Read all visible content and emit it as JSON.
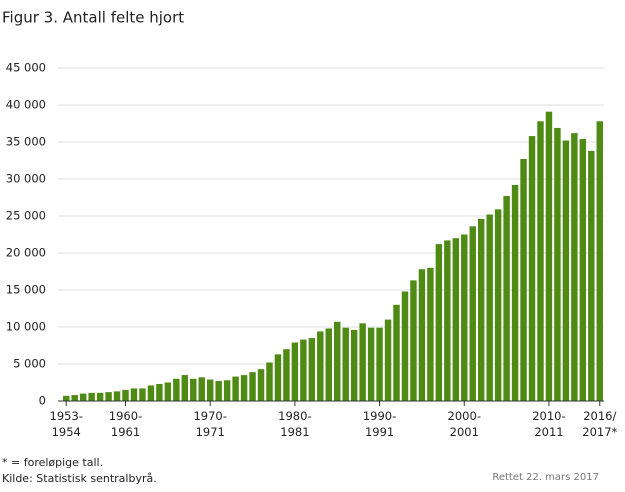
{
  "chart_data": {
    "type": "bar",
    "title": "Figur 3. Antall felte hjort",
    "categories": [
      "1953-\n1954",
      null,
      null,
      null,
      null,
      null,
      null,
      "1960-\n1961",
      null,
      null,
      null,
      null,
      null,
      null,
      null,
      null,
      null,
      "1970-\n1971",
      null,
      null,
      null,
      null,
      null,
      null,
      null,
      null,
      null,
      "1980-\n1981",
      null,
      null,
      null,
      null,
      null,
      null,
      null,
      null,
      null,
      "1990-\n1991",
      null,
      null,
      null,
      null,
      null,
      null,
      null,
      null,
      null,
      "2000-\n2001",
      null,
      null,
      null,
      null,
      null,
      null,
      null,
      null,
      null,
      "2010-\n2011",
      null,
      null,
      null,
      null,
      null,
      "2016/\n2017*"
    ],
    "values": [
      700,
      800,
      1000,
      1100,
      1100,
      1200,
      1300,
      1500,
      1700,
      1700,
      2100,
      2300,
      2500,
      3000,
      3500,
      3000,
      3200,
      2900,
      2700,
      2800,
      3300,
      3500,
      3900,
      4300,
      5200,
      6300,
      7000,
      7900,
      8300,
      8500,
      9400,
      9800,
      10700,
      9900,
      9600,
      10500,
      9900,
      9900,
      11000,
      13000,
      14800,
      16300,
      17800,
      18000,
      21200,
      21700,
      22000,
      22500,
      23600,
      24600,
      25200,
      25900,
      27700,
      29200,
      32700,
      35800,
      37800,
      39100,
      36900,
      35200,
      36200,
      35400,
      33800,
      37800
    ],
    "color": "#4e8a14",
    "ylim": [
      0,
      45000
    ],
    "yticks": [
      0,
      {
        "value": 5000,
        "label": "5 000"
      },
      {
        "value": 10000,
        "label": "10 000"
      },
      {
        "value": 15000,
        "label": "15 000"
      },
      {
        "value": 20000,
        "label": "20 000"
      },
      {
        "value": 25000,
        "label": "25 000"
      },
      {
        "value": 30000,
        "label": "30 000"
      },
      {
        "value": 35000,
        "label": "35 000"
      },
      {
        "value": 40000,
        "label": "40 000"
      },
      {
        "value": 45000,
        "label": "45 000"
      }
    ],
    "grid": true,
    "notes": [
      "* = foreløpige tall.",
      "Kilde: Statistisk sentralbyrå."
    ],
    "corrected": "Rettet 22. mars 2017"
  }
}
